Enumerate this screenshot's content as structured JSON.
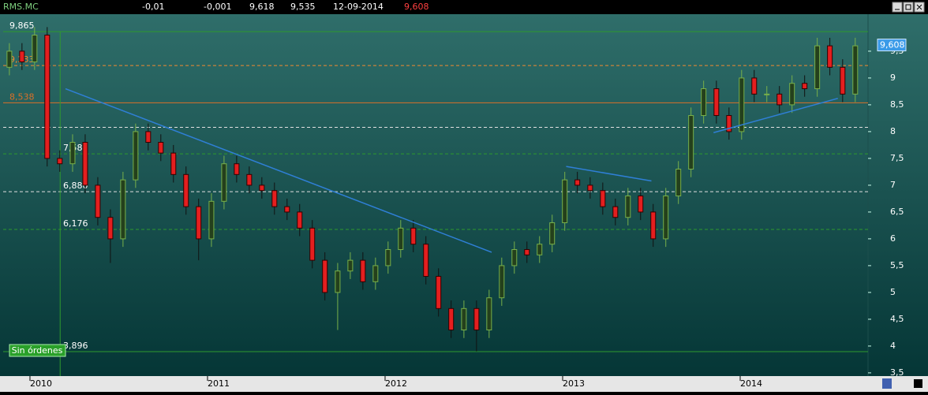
{
  "header": {
    "items": [
      "RMS.MC",
      "-0,01",
      "-0,001",
      "9,618",
      "9,535",
      "12-09-2014",
      "9,608"
    ]
  },
  "status": "Sin órdenes",
  "chart_data": {
    "type": "candlestick",
    "x": [
      2009.884,
      2009.955,
      2010.026,
      2010.097,
      2010.168,
      2010.24,
      2010.311,
      2010.382,
      2010.453,
      2010.524,
      2010.595,
      2010.666,
      2010.737,
      2010.808,
      2010.879,
      2010.95,
      2011.022,
      2011.093,
      2011.164,
      2011.235,
      2011.306,
      2011.377,
      2011.448,
      2011.519,
      2011.59,
      2011.661,
      2011.733,
      2011.804,
      2011.875,
      2011.946,
      2012.017,
      2012.088,
      2012.159,
      2012.23,
      2012.301,
      2012.372,
      2012.444,
      2012.515,
      2012.586,
      2012.657,
      2012.728,
      2012.799,
      2012.87,
      2012.941,
      2013.012,
      2013.083,
      2013.155,
      2013.226,
      2013.297,
      2013.368,
      2013.439,
      2013.51,
      2013.581,
      2013.652,
      2013.723,
      2013.794,
      2013.866,
      2013.937,
      2014.008,
      2014.079,
      2014.15,
      2014.221,
      2014.292,
      2014.363,
      2014.434,
      2014.505,
      2014.577,
      2014.648
    ],
    "open": [
      9.2,
      9.5,
      9.3,
      9.8,
      7.5,
      7.4,
      7.8,
      7.0,
      6.4,
      6.0,
      7.1,
      8.0,
      7.8,
      7.6,
      7.2,
      6.6,
      6.0,
      6.7,
      7.4,
      7.2,
      7.0,
      6.9,
      6.6,
      6.5,
      6.2,
      5.6,
      5.0,
      5.4,
      5.6,
      5.2,
      5.5,
      5.8,
      6.2,
      5.9,
      5.3,
      4.7,
      4.3,
      4.7,
      4.3,
      4.9,
      5.5,
      5.8,
      5.7,
      5.9,
      6.3,
      7.1,
      7.0,
      6.9,
      6.6,
      6.4,
      6.8,
      6.5,
      6.0,
      6.8,
      7.3,
      8.3,
      8.8,
      8.3,
      8.0,
      9.0,
      8.7,
      8.7,
      8.5,
      8.9,
      8.8,
      9.6,
      9.2,
      8.7
    ],
    "high": [
      9.65,
      9.65,
      9.95,
      9.95,
      7.65,
      7.95,
      7.95,
      7.15,
      6.55,
      7.25,
      8.15,
      8.15,
      7.95,
      7.75,
      7.35,
      6.75,
      6.85,
      7.55,
      7.55,
      7.35,
      7.15,
      7.05,
      6.75,
      6.65,
      6.35,
      5.75,
      5.55,
      5.75,
      5.75,
      5.65,
      5.95,
      6.35,
      6.35,
      6.05,
      5.45,
      4.85,
      4.85,
      4.85,
      5.05,
      5.65,
      5.95,
      5.95,
      6.05,
      6.45,
      7.25,
      7.25,
      7.15,
      7.05,
      6.75,
      6.95,
      6.95,
      6.65,
      6.95,
      7.45,
      8.45,
      8.95,
      8.95,
      8.45,
      9.15,
      9.15,
      8.85,
      8.85,
      9.05,
      9.05,
      9.75,
      9.75,
      9.35,
      9.75
    ],
    "low": [
      9.05,
      9.15,
      9.15,
      7.35,
      7.25,
      7.25,
      6.85,
      6.25,
      5.55,
      5.85,
      6.95,
      7.65,
      7.45,
      7.05,
      6.45,
      5.6,
      5.85,
      6.55,
      7.05,
      6.85,
      6.75,
      6.45,
      6.35,
      6.05,
      5.45,
      4.85,
      4.3,
      5.25,
      5.05,
      5.05,
      5.35,
      5.65,
      5.75,
      5.15,
      4.55,
      4.15,
      4.15,
      3.9,
      4.15,
      4.75,
      5.35,
      5.55,
      5.55,
      5.75,
      6.15,
      6.85,
      6.75,
      6.45,
      6.25,
      6.25,
      6.35,
      5.85,
      5.85,
      6.65,
      7.15,
      8.15,
      8.15,
      7.85,
      7.85,
      8.55,
      8.55,
      8.35,
      8.35,
      8.65,
      8.65,
      9.05,
      8.55,
      8.55
    ],
    "close": [
      9.5,
      9.3,
      9.8,
      7.5,
      7.4,
      7.8,
      7.0,
      6.4,
      6.0,
      7.1,
      8.0,
      7.8,
      7.6,
      7.2,
      6.6,
      6.0,
      6.7,
      7.4,
      7.2,
      7.0,
      6.9,
      6.6,
      6.5,
      6.2,
      5.6,
      5.0,
      5.4,
      5.6,
      5.2,
      5.5,
      5.8,
      6.2,
      5.9,
      5.3,
      4.7,
      4.3,
      4.7,
      4.3,
      4.9,
      5.5,
      5.8,
      5.7,
      5.9,
      6.3,
      7.1,
      7.0,
      6.9,
      6.6,
      6.4,
      6.8,
      6.5,
      6.0,
      6.8,
      7.3,
      8.3,
      8.8,
      8.3,
      8.0,
      9.0,
      8.7,
      8.7,
      8.5,
      8.9,
      8.8,
      9.6,
      9.2,
      8.7,
      9.6
    ],
    "up_color": "#24401c",
    "up_stroke": "#78b04a",
    "down_color": "#e41f1f",
    "xlim": [
      2009.849,
      2014.72
    ],
    "xticks": [
      2010,
      2011,
      2012,
      2013,
      2014
    ],
    "ylim": [
      3.44,
      10.19
    ],
    "yticks": [
      {
        "value": 3.5,
        "label": "3,5"
      },
      4,
      {
        "value": 4.5,
        "label": "4,5"
      },
      5,
      {
        "value": 5.5,
        "label": "5,5"
      },
      6,
      {
        "value": 6.5,
        "label": "6,5"
      },
      7,
      {
        "value": 7.5,
        "label": "7,5"
      },
      8,
      {
        "value": 8.5,
        "label": "8,5"
      },
      9,
      {
        "value": 9.5,
        "label": "9,5"
      }
    ],
    "levels": [
      {
        "value": 9.865,
        "label": "9,865",
        "style": "solid",
        "color": "#2e9a2e"
      },
      {
        "value": 9.233,
        "label": "9,233",
        "style": "dashed",
        "color": "#f08a30"
      },
      {
        "value": 8.538,
        "label": "8,538",
        "style": "solid",
        "color": "#d8702a"
      },
      {
        "value": 8.08,
        "style": "dashed",
        "color": "#e0e0e0"
      },
      {
        "value": 7.585,
        "label": "7,585",
        "style": "dashed",
        "color": "#2e9a2e"
      },
      {
        "value": 6.88,
        "label": "6,880",
        "style": "dashed",
        "color": "#e0e0e0"
      },
      {
        "value": 6.176,
        "label": "6,176",
        "style": "dashed",
        "color": "#2e9a2e"
      },
      {
        "value": 3.896,
        "label": "3,896",
        "style": "solid",
        "color": "#2e9a2e"
      }
    ],
    "vline": 2010.17,
    "trendlines": [
      {
        "x": [
          2010.2,
          2012.6
        ],
        "y": [
          8.8,
          5.75
        ],
        "color": "#2f7fd6"
      },
      {
        "x": [
          2013.02,
          2013.5
        ],
        "y": [
          7.35,
          7.08
        ],
        "color": "#2f7fd6"
      },
      {
        "x": [
          2013.85,
          2014.55
        ],
        "y": [
          7.98,
          8.62
        ],
        "color": "#2f7fd6"
      }
    ],
    "last_price": {
      "value": 9.608,
      "label": "9,608"
    }
  }
}
